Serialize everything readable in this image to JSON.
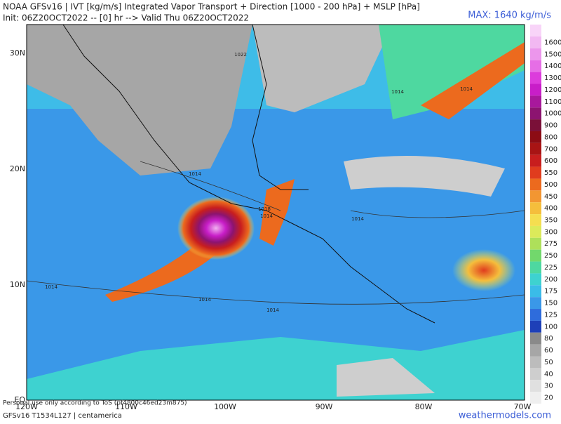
{
  "header": {
    "title": "NOAA GFSv16 | IVT [kg/m/s] Integrated Vapor Transport + Direction [1000 - 200 hPa] + MSLP [hPa]",
    "subtitle": "Init: 06Z20OCT2022 -- [0] hr --> Valid Thu 06Z20OCT2022",
    "max": "MAX: 1640 kg/m/s"
  },
  "map": {
    "lat_labels": [
      "30N",
      "20N",
      "10N",
      "EQ"
    ],
    "lon_labels": [
      "120W",
      "110W",
      "100W",
      "90W",
      "80W",
      "70W"
    ],
    "isobar_labels": [
      "1022",
      "1014",
      "1014",
      "1018",
      "1014",
      "1014",
      "1014",
      "1014",
      "1014",
      "1014"
    ]
  },
  "colorbar": {
    "entries": [
      {
        "label": 1600,
        "color": "#f2b8f2"
      },
      {
        "label": 1500,
        "color": "#ec96ec"
      },
      {
        "label": 1400,
        "color": "#e66ee6"
      },
      {
        "label": 1300,
        "color": "#dc3cdc"
      },
      {
        "label": 1200,
        "color": "#c81ec8"
      },
      {
        "label": 1100,
        "color": "#a8189c"
      },
      {
        "label": 1000,
        "color": "#8c1470"
      },
      {
        "label": 900,
        "color": "#7a1038"
      },
      {
        "label": 800,
        "color": "#8c0c14"
      },
      {
        "label": 700,
        "color": "#a81414"
      },
      {
        "label": 600,
        "color": "#c81e1e"
      },
      {
        "label": 550,
        "color": "#e03c1e"
      },
      {
        "label": 500,
        "color": "#ec6a1e"
      },
      {
        "label": 450,
        "color": "#f29632"
      },
      {
        "label": 400,
        "color": "#f5be3c"
      },
      {
        "label": 350,
        "color": "#f5de50"
      },
      {
        "label": 300,
        "color": "#dcea5a"
      },
      {
        "label": 275,
        "color": "#aee05a"
      },
      {
        "label": 250,
        "color": "#72d86c"
      },
      {
        "label": 225,
        "color": "#4ed8a0"
      },
      {
        "label": 200,
        "color": "#3ed2d0"
      },
      {
        "label": 175,
        "color": "#3abce8"
      },
      {
        "label": 150,
        "color": "#3a98e8"
      },
      {
        "label": 125,
        "color": "#2e6cdc"
      },
      {
        "label": 100,
        "color": "#1e40b8"
      },
      {
        "label": 80,
        "color": "#8a8a8a"
      },
      {
        "label": 60,
        "color": "#a6a6a6"
      },
      {
        "label": 50,
        "color": "#bcbcbc"
      },
      {
        "label": 40,
        "color": "#cecece"
      },
      {
        "label": 30,
        "color": "#e0e0e0"
      },
      {
        "label": 20,
        "color": "#efefef"
      }
    ]
  },
  "footer": {
    "model": "GFSv16 T1534L127 | centamerica",
    "disclaimer": "Personal use only according to ToS (pf4800c46ed23m875)",
    "site": "weathermodels.com"
  }
}
